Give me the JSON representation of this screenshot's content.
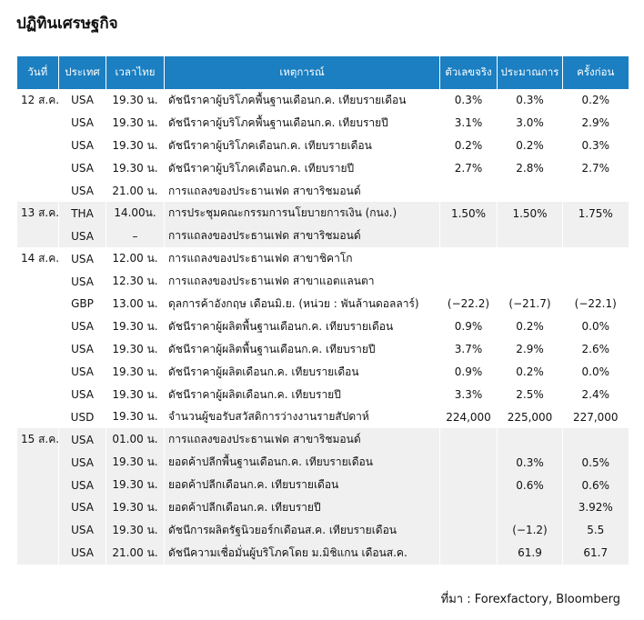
{
  "header": {
    "title": "ปฏิทินเศรษฐกิจ"
  },
  "table": {
    "columns": [
      "วันที่",
      "ประเทศ",
      "เวลาไทย",
      "เหตุการณ์",
      "ตัวเลขจริง",
      "ประมาณการ",
      "ครั้งก่อน"
    ],
    "groups": [
      {
        "date": "12 ส.ค.",
        "rows": [
          {
            "country": "USA",
            "time": "19.30 น.",
            "event": "ดัชนีราคาผู้บริโภคพื้นฐานเดือนก.ค. เทียบรายเดือน",
            "actual": "0.3%",
            "forecast": "0.3%",
            "previous": "0.2%"
          },
          {
            "country": "USA",
            "time": "19.30 น.",
            "event": "ดัชนีราคาผู้บริโภคพื้นฐานเดือนก.ค. เทียบรายปี",
            "actual": "3.1%",
            "forecast": "3.0%",
            "previous": "2.9%"
          },
          {
            "country": "USA",
            "time": "19.30 น.",
            "event": "ดัชนีราคาผู้บริโภคเดือนก.ค. เทียบรายเดือน",
            "actual": "0.2%",
            "forecast": "0.2%",
            "previous": "0.3%"
          },
          {
            "country": "USA",
            "time": "19.30 น.",
            "event": "ดัชนีราคาผู้บริโภคเดือนก.ค. เทียบรายปี",
            "actual": "2.7%",
            "forecast": "2.8%",
            "previous": "2.7%"
          },
          {
            "country": "USA",
            "time": "21.00 น.",
            "event": "การแถลงของประธานเฟด สาขาริชมอนด์"
          }
        ]
      },
      {
        "date": "13 ส.ค.",
        "rows": [
          {
            "country": "THA",
            "time": "14.00น.",
            "event": "การประชุมคณะกรรมการนโยบายการเงิน (กนง.)",
            "actual": "1.50%",
            "forecast": "1.50%",
            "previous": "1.75%"
          },
          {
            "country": "USA",
            "time": "–",
            "event": "การแถลงของประธานเฟด สาขาริชมอนด์"
          }
        ]
      },
      {
        "date": "14 ส.ค.",
        "rows": [
          {
            "country": "USA",
            "time": "12.00 น.",
            "event": "การแถลงของประธานเฟด สาขาชิคาโก"
          },
          {
            "country": "USA",
            "time": "12.30 น.",
            "event": "การแถลงของประธานเฟด สาขาแอตแลนตา"
          },
          {
            "country": "GBP",
            "time": "13.00 น.",
            "event": "ดุลการค้าอังกฤษ เดือนมิ.ย. (หน่วย : พันล้านดอลลาร์)",
            "actual": "(−22.2)",
            "forecast": "(−21.7)",
            "previous": "(−22.1)"
          },
          {
            "country": "USA",
            "time": "19.30 น.",
            "event": "ดัชนีราคาผู้ผลิตพื้นฐานเดือนก.ค. เทียบรายเดือน",
            "actual": "0.9%",
            "forecast": "0.2%",
            "previous": "0.0%"
          },
          {
            "country": "USA",
            "time": "19.30 น.",
            "event": "ดัชนีราคาผู้ผลิตพื้นฐานเดือนก.ค. เทียบรายปี",
            "actual": "3.7%",
            "forecast": "2.9%",
            "previous": "2.6%"
          },
          {
            "country": "USA",
            "time": "19.30 น.",
            "event": "ดัชนีราคาผู้ผลิตเดือนก.ค. เทียบรายเดือน",
            "actual": "0.9%",
            "forecast": "0.2%",
            "previous": "0.0%"
          },
          {
            "country": "USA",
            "time": "19.30 น.",
            "event": "ดัชนีราคาผู้ผลิตเดือนก.ค. เทียบรายปี",
            "actual": "3.3%",
            "forecast": "2.5%",
            "previous": "2.4%"
          },
          {
            "country": "USD",
            "time": "19.30 น.",
            "event": "จำนวนผู้ขอรับสวัสดิการว่างงานรายสัปดาห์",
            "actual": "224,000",
            "forecast": "225,000",
            "previous": "227,000"
          }
        ]
      },
      {
        "date": "15 ส.ค.",
        "rows": [
          {
            "country": "USA",
            "time": "01.00 น.",
            "event": "การแถลงของประธานเฟด สาขาริชมอนด์"
          },
          {
            "country": "USA",
            "time": "19.30 น.",
            "event": "ยอดค้าปลีกพื้นฐานเดือนก.ค. เทียบรายเดือน",
            "forecast": "0.3%",
            "previous": "0.5%"
          },
          {
            "country": "USA",
            "time": "19.30 น.",
            "event": "ยอดค้าปลีกเดือนก.ค. เทียบรายเดือน",
            "forecast": "0.6%",
            "previous": "0.6%"
          },
          {
            "country": "USA",
            "time": "19.30 น.",
            "event": "ยอดค้าปลีกเดือนก.ค. เทียบรายปี",
            "previous": "3.92%"
          },
          {
            "country": "USA",
            "time": "19.30 น.",
            "event": "ดัชนีการผลิตรัฐนิวยอร์กเดือนส.ค. เทียบรายเดือน",
            "forecast": "(−1.2)",
            "previous": "5.5"
          },
          {
            "country": "USA",
            "time": "21.00 น.",
            "event": "ดัชนีความเชื่อมั่นผู้บริโภคโดย ม.มิชิแกน เดือนส.ค.",
            "forecast": "61.9",
            "previous": "61.7"
          }
        ]
      }
    ]
  },
  "footer": {
    "source": "ที่มา : Forexfactory, Bloomberg"
  }
}
